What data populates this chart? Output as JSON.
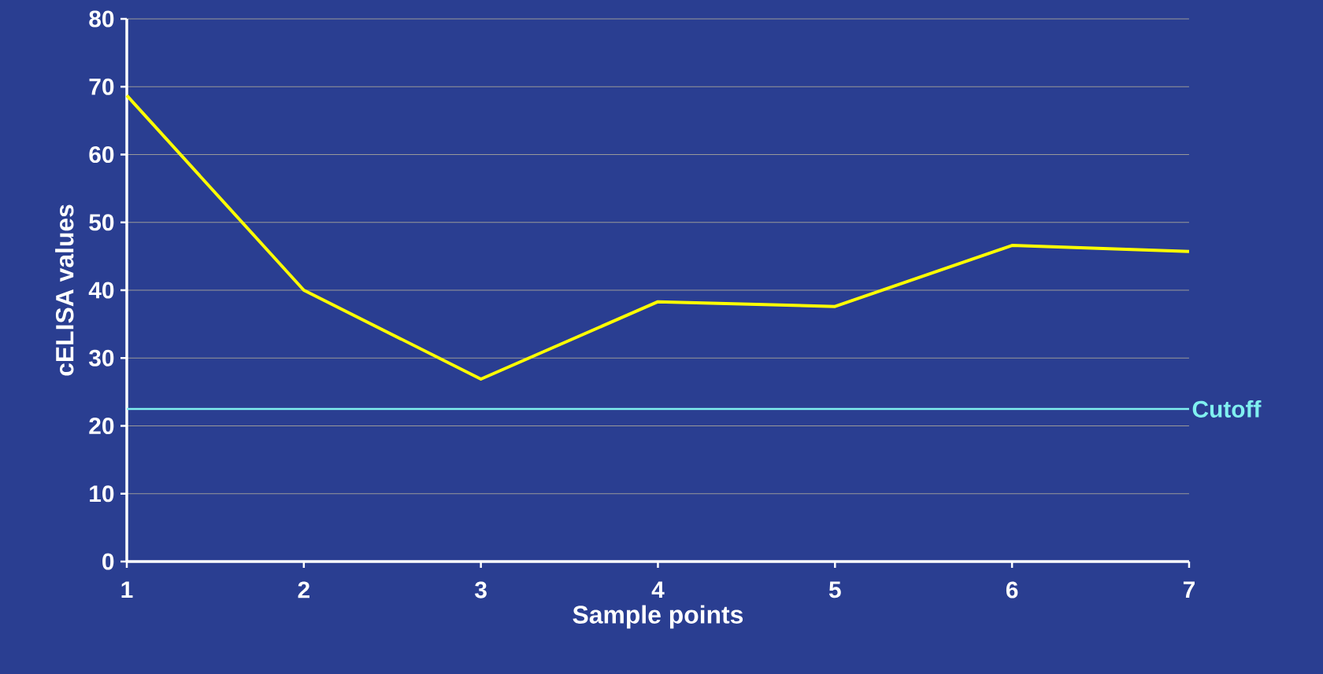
{
  "chart_data": {
    "type": "line",
    "xlabel": "Sample points",
    "ylabel": "cELISA values",
    "x": [
      1,
      2,
      3,
      4,
      5,
      6,
      7
    ],
    "series": [
      {
        "color": "#ffff00",
        "values": [
          68.7,
          40.0,
          26.9,
          38.3,
          37.6,
          46.6,
          45.7
        ]
      }
    ],
    "xlim": [
      1,
      7
    ],
    "xticks": [
      1,
      2,
      3,
      4,
      5,
      6,
      7
    ],
    "ylim": [
      0,
      80
    ],
    "yticks": [
      0,
      10,
      20,
      30,
      40,
      50,
      60,
      70,
      80
    ],
    "grid": "y",
    "marker": "none",
    "line_style": "solid",
    "ref_lines": [
      {
        "axis": "y",
        "value": 22.5,
        "label": "Cutoff",
        "color": "#80f0f0"
      }
    ]
  }
}
